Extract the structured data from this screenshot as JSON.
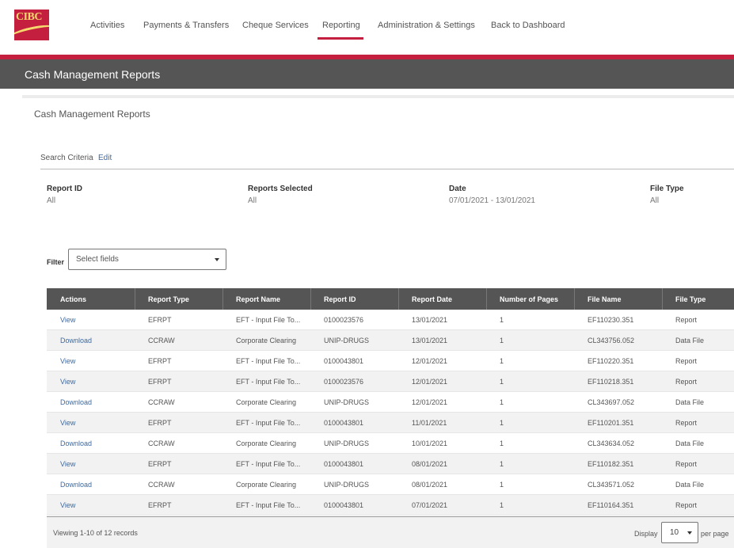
{
  "logo": {
    "text": "CIBC"
  },
  "nav": [
    "Activities",
    "Payments & Transfers",
    "Cheque Services",
    "Reporting",
    "Administration & Settings",
    "Back to Dashboard"
  ],
  "nav_active": "Reporting",
  "page_title": "Cash Management Reports",
  "section_title": "Cash Management Reports",
  "search_criteria": {
    "label": "Search Criteria",
    "edit_label": "Edit",
    "fields": [
      {
        "label": "Report ID",
        "value": "All"
      },
      {
        "label": "Reports Selected",
        "value": "All"
      },
      {
        "label": "Date",
        "value": "07/01/2021 - 13/01/2021"
      },
      {
        "label": "File Type",
        "value": "All"
      }
    ]
  },
  "filter": {
    "label": "Filter",
    "placeholder": "Select fields"
  },
  "table": {
    "headers": [
      "Actions",
      "Report Type",
      "Report Name",
      "Report ID",
      "Report Date",
      "Number of Pages",
      "File Name",
      "File Type"
    ],
    "rows": [
      [
        "View",
        "EFRPT",
        "EFT - Input File To...",
        "0100023576",
        "13/01/2021",
        "1",
        "EF110230.351",
        "Report"
      ],
      [
        "Download",
        "CCRAW",
        "Corporate Clearing",
        "UNIP-DRUGS",
        "13/01/2021",
        "1",
        "CL343756.052",
        "Data File"
      ],
      [
        "View",
        "EFRPT",
        "EFT - Input File To...",
        "0100043801",
        "12/01/2021",
        "1",
        "EF110220.351",
        "Report"
      ],
      [
        "View",
        "EFRPT",
        "EFT - Input File To...",
        "0100023576",
        "12/01/2021",
        "1",
        "EF110218.351",
        "Report"
      ],
      [
        "Download",
        "CCRAW",
        "Corporate Clearing",
        "UNIP-DRUGS",
        "12/01/2021",
        "1",
        "CL343697.052",
        "Data File"
      ],
      [
        "View",
        "EFRPT",
        "EFT - Input File To...",
        "0100043801",
        "11/01/2021",
        "1",
        "EF110201.351",
        "Report"
      ],
      [
        "Download",
        "CCRAW",
        "Corporate Clearing",
        "UNIP-DRUGS",
        "10/01/2021",
        "1",
        "CL343634.052",
        "Data File"
      ],
      [
        "View",
        "EFRPT",
        "EFT - Input File To...",
        "0100043801",
        "08/01/2021",
        "1",
        "EF110182.351",
        "Report"
      ],
      [
        "Download",
        "CCRAW",
        "Corporate Clearing",
        "UNIP-DRUGS",
        "08/01/2021",
        "1",
        "CL343571.052",
        "Data File"
      ],
      [
        "View",
        "EFRPT",
        "EFT - Input File To...",
        "0100043801",
        "07/01/2021",
        "1",
        "EF110164.351",
        "Report"
      ]
    ]
  },
  "pagination": {
    "viewing_text": "Viewing 1-10 of 12 records",
    "display_label": "Display",
    "per_page_value": "10",
    "per_page_label": "per page"
  },
  "colors": {
    "brand_red": "#c41f3e",
    "header_grey": "#555555",
    "link_blue": "#3e6aa0"
  }
}
